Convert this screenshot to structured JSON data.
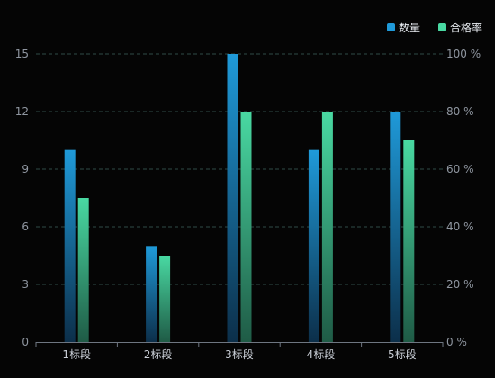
{
  "chart_data": {
    "type": "bar",
    "categories": [
      "1标段",
      "2标段",
      "3标段",
      "4标段",
      "5标段"
    ],
    "series": [
      {
        "name": "数量",
        "axis": "left",
        "values": [
          10,
          5,
          15,
          10,
          12
        ],
        "color_top": "#1f9ad9",
        "color_bottom": "#0c2f4a"
      },
      {
        "name": "合格率",
        "axis": "right",
        "values": [
          50,
          30,
          80,
          80,
          70
        ],
        "color_top": "#49d9a2",
        "color_bottom": "#1f5b46"
      }
    ],
    "left_axis": {
      "ticks": [
        0,
        3,
        6,
        9,
        12,
        15
      ],
      "tick_labels": [
        "0",
        "3",
        "6",
        "9",
        "12",
        "15"
      ],
      "ylim": [
        0,
        15
      ]
    },
    "right_axis": {
      "ticks": [
        0,
        20,
        40,
        60,
        80,
        100
      ],
      "tick_labels": [
        "0 %",
        "20 %",
        "40 %",
        "60 %",
        "80 %",
        "100 %"
      ],
      "ylim": [
        0,
        100
      ]
    },
    "legend": {
      "placement": "top-right",
      "items": [
        "数量",
        "合格率"
      ]
    },
    "grid": true,
    "grid_style": "dashed",
    "colors": {
      "background": "#050505",
      "grid": "#2f4b48",
      "axis": "#6e7681"
    }
  }
}
